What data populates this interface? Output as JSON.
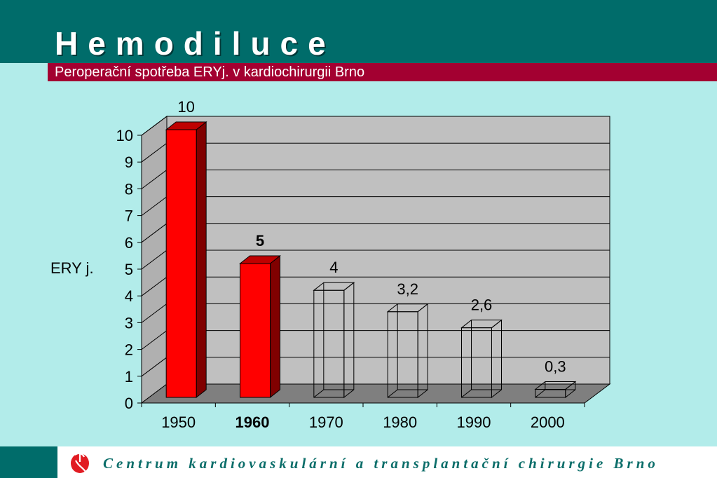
{
  "header": {
    "title": "Hemodiluce",
    "subtitle": "Peroperační spotřeba ERYj. v kardiochirurgii Brno"
  },
  "footer": {
    "text": "Centrum kardiovaskulární a transplantační chirurgie Brno",
    "logo_icon": "heart-logo-icon"
  },
  "colors": {
    "header_bg": "#006c6a",
    "subtitle_bg": "#a30031",
    "page_bg": "#b2ecea",
    "bar_filled": "#ff0000",
    "plot_bg": "#c0c0c0"
  },
  "chart_data": {
    "type": "bar",
    "style": "3d-column",
    "categories": [
      "1950",
      "1960",
      "1970",
      "1980",
      "1990",
      "2000"
    ],
    "values": [
      10,
      5,
      4,
      3.2,
      2.6,
      0.3
    ],
    "data_labels": [
      "10",
      "5",
      "4",
      "3,2",
      "2,6",
      "0,3"
    ],
    "filled": [
      true,
      true,
      false,
      false,
      false,
      false
    ],
    "bold_category": "1960",
    "ylabel": "ERY j.",
    "xlabel": "",
    "ylim": [
      0,
      10
    ],
    "yticks": [
      "0",
      "1",
      "2",
      "3",
      "4",
      "5",
      "6",
      "7",
      "8",
      "9",
      "10"
    ],
    "grid": true
  }
}
